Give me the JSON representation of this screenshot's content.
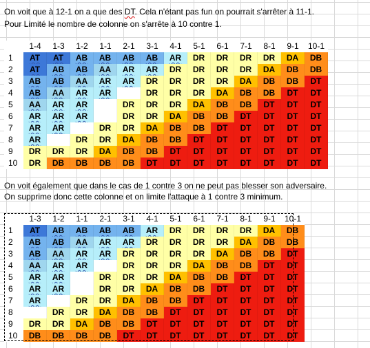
{
  "notes": {
    "line1_a": "On voit que à 12-1 on a que des ",
    "line1_dt": "DT",
    "line1_b": ". Cela n'étant pas fun on pourrait s'arrêter à 11-1.",
    "line2": " Pour Limité le nombre de colonne on s'arrête à 10 contre 1.",
    "line3": "On voit également que dans le cas de 1 contre 3 on ne peut pas blesser son adversaire.",
    "line4": " On supprime donc cette colonne et on limite l'attaque à 1 contre 3 minimum."
  },
  "colors": {
    "AT": "#3d78d8",
    "AB": "#74b3ee",
    "AA": "#9fd6ee",
    "AR": "#b6eefa",
    "DR": "#ffffa6",
    "DA": "#ffc000",
    "DB": "#ff8d1a",
    "DT": "#ee1c10"
  },
  "table1": {
    "headers": [
      "1-4",
      "1-3",
      "1-2",
      "1-1",
      "2-1",
      "3-1",
      "4-1",
      "5-1",
      "6-1",
      "7-1",
      "8-1",
      "9-1",
      "10-1"
    ],
    "rows": [
      {
        "label": "1",
        "cells": [
          "AT",
          "AT",
          "AB",
          "AB",
          "AB",
          "AB",
          "AR",
          "DR",
          "DR",
          "DR",
          "DR",
          "DA",
          "DB"
        ]
      },
      {
        "label": "2",
        "cells": [
          "AT",
          "AB",
          "AB",
          "AA",
          "AR",
          "AR",
          "DR",
          "DR",
          "DR",
          "DR",
          "DA",
          "DB",
          "DB"
        ]
      },
      {
        "label": "3",
        "cells": [
          "AB",
          "AB",
          "AA",
          "AR",
          "AR",
          "DR",
          "DR",
          "DR",
          "DR",
          "DA",
          "DB",
          "DB",
          "DT"
        ]
      },
      {
        "label": "4",
        "cells": [
          "AB",
          "AA",
          "AR",
          "AR",
          "",
          "DR",
          "DR",
          "DR",
          "DA",
          "DB",
          "DB",
          "DT",
          "DT"
        ]
      },
      {
        "label": "5",
        "cells": [
          "AA",
          "AR",
          "AR",
          "",
          "DR",
          "DR",
          "DR",
          "DA",
          "DB",
          "DB",
          "DT",
          "DT",
          "DT"
        ]
      },
      {
        "label": "6",
        "cells": [
          "AR",
          "AR",
          "AR",
          "",
          "DR",
          "DR",
          "DA",
          "DB",
          "DB",
          "DT",
          "DT",
          "DT",
          "DT"
        ]
      },
      {
        "label": "7",
        "cells": [
          "AR",
          "AR",
          "",
          "DR",
          "DR",
          "DA",
          "DB",
          "DB",
          "DT",
          "DT",
          "DT",
          "DT",
          "DT"
        ]
      },
      {
        "label": "8",
        "cells": [
          "AR",
          "",
          "DR",
          "DR",
          "DA",
          "DB",
          "DB",
          "DT",
          "DT",
          "DT",
          "DT",
          "DT",
          "DT"
        ]
      },
      {
        "label": "9",
        "cells": [
          "DR",
          "DR",
          "DR",
          "DA",
          "DB",
          "DB",
          "DT",
          "DT",
          "DT",
          "DT",
          "DT",
          "DT",
          "DT"
        ]
      },
      {
        "label": "10",
        "cells": [
          "DR",
          "DB",
          "DB",
          "DB",
          "DB",
          "DT",
          "DT",
          "DT",
          "DT",
          "DT",
          "DT",
          "DT",
          "DT"
        ]
      }
    ]
  },
  "table2": {
    "headers": [
      "1-3",
      "1-2",
      "1-1",
      "2-1",
      "3-1",
      "4-1",
      "5-1",
      "6-1",
      "7-1",
      "8-1",
      "9-1",
      "10-1"
    ],
    "rows": [
      {
        "label": "1",
        "cells": [
          "AT",
          "AB",
          "AB",
          "AB",
          "AB",
          "AR",
          "DR",
          "DR",
          "DR",
          "DR",
          "DA",
          "DB"
        ]
      },
      {
        "label": "2",
        "cells": [
          "AB",
          "AB",
          "AA",
          "AR",
          "AR",
          "DR",
          "DR",
          "DR",
          "DR",
          "DA",
          "DB",
          "DB"
        ]
      },
      {
        "label": "3",
        "cells": [
          "AB",
          "AA",
          "AR",
          "AR",
          "DR",
          "DR",
          "DR",
          "DR",
          "DA",
          "DB",
          "DB",
          "DT"
        ]
      },
      {
        "label": "4",
        "cells": [
          "AA",
          "AR",
          "AR",
          "",
          "DR",
          "DR",
          "DR",
          "DA",
          "DB",
          "DB",
          "DT",
          "DT"
        ]
      },
      {
        "label": "5",
        "cells": [
          "AR",
          "AR",
          "",
          "DR",
          "DR",
          "DR",
          "DA",
          "DB",
          "DB",
          "DT",
          "DT",
          "DT"
        ]
      },
      {
        "label": "6",
        "cells": [
          "AR",
          "AR",
          "",
          "DR",
          "DR",
          "DA",
          "DB",
          "DB",
          "DT",
          "DT",
          "DT",
          "DT"
        ]
      },
      {
        "label": "7",
        "cells": [
          "AR",
          "",
          "DR",
          "DR",
          "DA",
          "DB",
          "DB",
          "DT",
          "DT",
          "DT",
          "DT",
          "DT"
        ]
      },
      {
        "label": "8",
        "cells": [
          "",
          "DR",
          "DR",
          "DA",
          "DB",
          "DB",
          "DT",
          "DT",
          "DT",
          "DT",
          "DT",
          "DT"
        ]
      },
      {
        "label": "9",
        "cells": [
          "DR",
          "DR",
          "DA",
          "DB",
          "DB",
          "DT",
          "DT",
          "DT",
          "DT",
          "DT",
          "DT",
          "DT"
        ]
      },
      {
        "label": "10",
        "cells": [
          "DB",
          "DB",
          "DB",
          "DB",
          "DT",
          "DT",
          "DT",
          "DT",
          "DT",
          "DT",
          "DT",
          "DT"
        ]
      }
    ]
  }
}
